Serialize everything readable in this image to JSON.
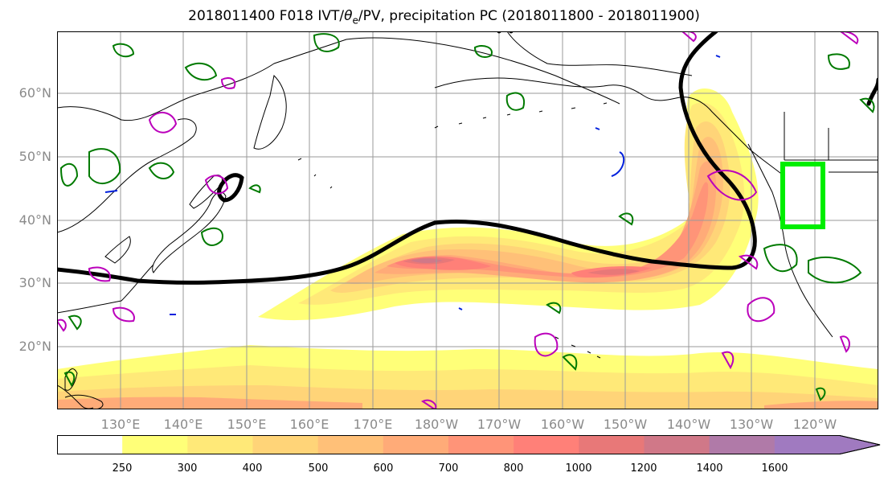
{
  "title": {
    "prefix": "2018011400 F018 IVT/",
    "theta": "θ",
    "theta_sub": "e",
    "suffix": "/PV, precipitation PC (2018011800 - 2018011900)"
  },
  "map": {
    "lat_labels": [
      {
        "text": "60°N",
        "lat": 60
      },
      {
        "text": "50°N",
        "lat": 50
      },
      {
        "text": "40°N",
        "lat": 40
      },
      {
        "text": "30°N",
        "lat": 30
      },
      {
        "text": "20°N",
        "lat": 20
      }
    ],
    "lon_labels": [
      {
        "text": "130°E",
        "lon": 130
      },
      {
        "text": "140°E",
        "lon": 140
      },
      {
        "text": "150°E",
        "lon": 150
      },
      {
        "text": "160°E",
        "lon": 160
      },
      {
        "text": "170°E",
        "lon": 170
      },
      {
        "text": "180°W",
        "lon": 180
      },
      {
        "text": "170°W",
        "lon": 190
      },
      {
        "text": "160°W",
        "lon": 200
      },
      {
        "text": "150°W",
        "lon": 210
      },
      {
        "text": "140°W",
        "lon": 220
      },
      {
        "text": "130°W",
        "lon": 230
      },
      {
        "text": "120°W",
        "lon": 240
      }
    ],
    "box_color": "#00ee00",
    "contour_colors": {
      "jet": "#000000",
      "pv": "#007a00",
      "theta": "#bb00bb",
      "blue": "#0020dd"
    }
  },
  "colorbar": {
    "ticks": [
      "250",
      "300",
      "400",
      "500",
      "600",
      "700",
      "800",
      "1000",
      "1200",
      "1400",
      "1600"
    ],
    "colors": [
      "#ffffff",
      "#ffff78",
      "#ffe978",
      "#ffd478",
      "#ffc078",
      "#ffab78",
      "#ff9478",
      "#ff8078",
      "#e87878",
      "#d07888",
      "#b07aa8",
      "#a07ac0"
    ]
  }
}
